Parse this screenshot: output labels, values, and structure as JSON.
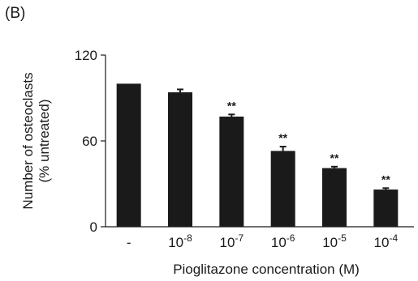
{
  "panel_label": "(B)",
  "chart_data": {
    "type": "bar",
    "categories": [
      "-",
      "10-8",
      "10-7",
      "10-6",
      "10-5",
      "10-4"
    ],
    "category_labels": [
      {
        "base": "-",
        "exp": ""
      },
      {
        "base": "10",
        "exp": "-8"
      },
      {
        "base": "10",
        "exp": "-7"
      },
      {
        "base": "10",
        "exp": "-6"
      },
      {
        "base": "10",
        "exp": "-5"
      },
      {
        "base": "10",
        "exp": "-4"
      }
    ],
    "values": [
      100,
      94,
      77,
      53,
      41,
      26
    ],
    "errors": [
      0,
      2,
      1.5,
      3,
      1,
      1
    ],
    "significance": [
      "",
      "",
      "**",
      "**",
      "**",
      "**"
    ],
    "xlabel": "Pioglitazone concentration (M)",
    "ylabel_lines": [
      "Number of osteoclasts",
      "(% untreated)"
    ],
    "ylim": [
      0,
      120
    ],
    "yticks": [
      0,
      60,
      120
    ],
    "bar_color": "#1a1a1a",
    "grid": false
  }
}
